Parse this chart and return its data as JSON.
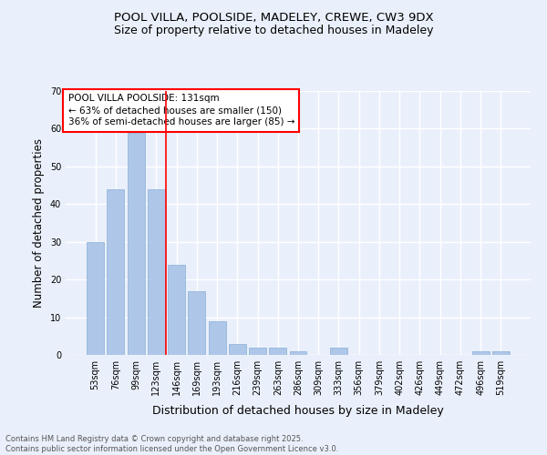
{
  "title1": "POOL VILLA, POOLSIDE, MADELEY, CREWE, CW3 9DX",
  "title2": "Size of property relative to detached houses in Madeley",
  "xlabel": "Distribution of detached houses by size in Madeley",
  "ylabel": "Number of detached properties",
  "categories": [
    "53sqm",
    "76sqm",
    "99sqm",
    "123sqm",
    "146sqm",
    "169sqm",
    "193sqm",
    "216sqm",
    "239sqm",
    "263sqm",
    "286sqm",
    "309sqm",
    "333sqm",
    "356sqm",
    "379sqm",
    "402sqm",
    "426sqm",
    "449sqm",
    "472sqm",
    "496sqm",
    "519sqm"
  ],
  "values": [
    30,
    44,
    59,
    44,
    24,
    17,
    9,
    3,
    2,
    2,
    1,
    0,
    2,
    0,
    0,
    0,
    0,
    0,
    0,
    1,
    1
  ],
  "bar_color": "#aec6e8",
  "bar_edge_color": "#8ab0d8",
  "vline_x_index": 3.5,
  "vline_color": "red",
  "annotation_text": "POOL VILLA POOLSIDE: 131sqm\n← 63% of detached houses are smaller (150)\n36% of semi-detached houses are larger (85) →",
  "footer": "Contains HM Land Registry data © Crown copyright and database right 2025.\nContains public sector information licensed under the Open Government Licence v3.0.",
  "ylim": [
    0,
    70
  ],
  "yticks": [
    0,
    10,
    20,
    30,
    40,
    50,
    60,
    70
  ],
  "bg_color": "#eaf0fb",
  "grid_color": "#ffffff",
  "title_fontsize": 9.5,
  "subtitle_fontsize": 9,
  "tick_fontsize": 7,
  "ylabel_fontsize": 8.5,
  "xlabel_fontsize": 9,
  "annotation_fontsize": 7.5,
  "footer_fontsize": 6
}
